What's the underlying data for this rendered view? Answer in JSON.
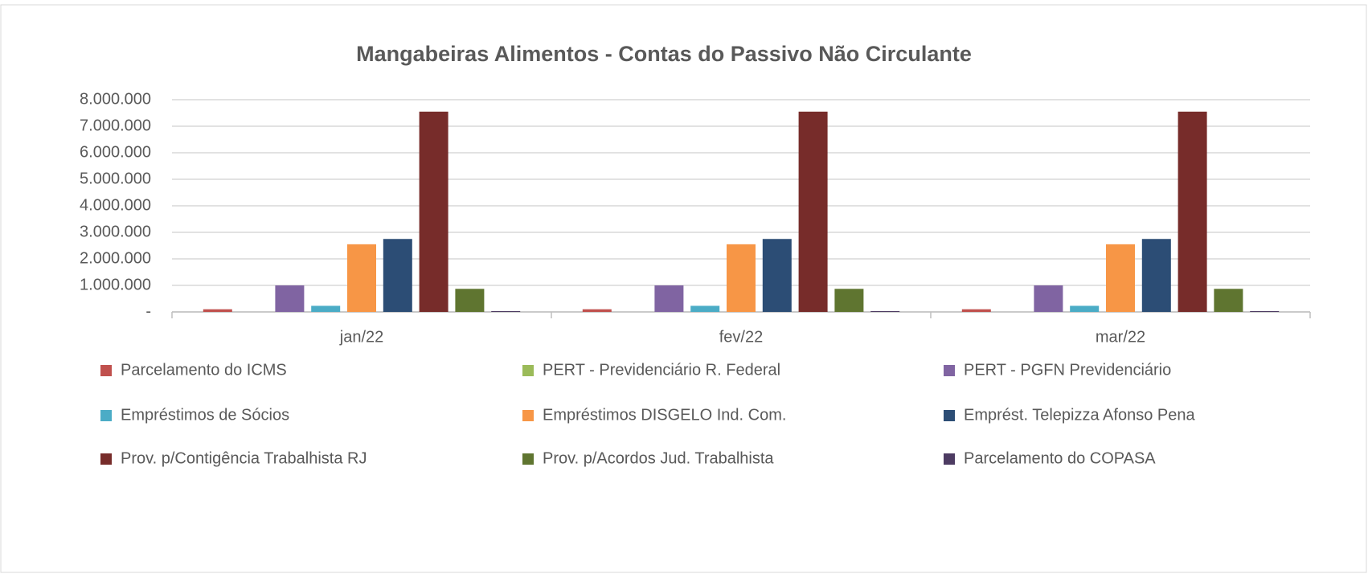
{
  "chart_data": {
    "type": "bar",
    "title": "Mangabeiras Alimentos - Contas do Passivo  Não Circulante",
    "categories": [
      "jan/22",
      "fev/22",
      "mar/22"
    ],
    "series": [
      {
        "name": "Parcelamento do ICMS",
        "color": "#c0504d",
        "values": [
          100000,
          100000,
          100000
        ]
      },
      {
        "name": "PERT - Previdenciário R. Federal",
        "color": "#9bbb59",
        "values": [
          0,
          0,
          0
        ]
      },
      {
        "name": "PERT - PGFN Previdenciário",
        "color": "#8064a2",
        "values": [
          1000000,
          1000000,
          1000000
        ]
      },
      {
        "name": "Empréstimos de Sócios",
        "color": "#4bacc6",
        "values": [
          230000,
          230000,
          230000
        ]
      },
      {
        "name": "Empréstimos DISGELO Ind. Com.",
        "color": "#f79646",
        "values": [
          2550000,
          2550000,
          2550000
        ]
      },
      {
        "name": "Emprést. Telepizza Afonso Pena",
        "color": "#2c4d75",
        "values": [
          2750000,
          2750000,
          2750000
        ]
      },
      {
        "name": "Prov. p/Contigência Trabalhista RJ",
        "color": "#772c2a",
        "values": [
          7550000,
          7550000,
          7550000
        ]
      },
      {
        "name": "Prov. p/Acordos Jud. Trabalhista",
        "color": "#5f7530",
        "values": [
          870000,
          870000,
          870000
        ]
      },
      {
        "name": "Parcelamento do COPASA",
        "color": "#4d3b62",
        "values": [
          30000,
          30000,
          30000
        ]
      }
    ],
    "ylim": [
      0,
      8000000
    ],
    "yticks": [
      {
        "value": 0,
        "label": "-"
      },
      {
        "value": 1000000,
        "label": "1.000.000"
      },
      {
        "value": 2000000,
        "label": "2.000.000"
      },
      {
        "value": 3000000,
        "label": "3.000.000"
      },
      {
        "value": 4000000,
        "label": "4.000.000"
      },
      {
        "value": 5000000,
        "label": "5.000.000"
      },
      {
        "value": 6000000,
        "label": "6.000.000"
      },
      {
        "value": 7000000,
        "label": "7.000.000"
      },
      {
        "value": 8000000,
        "label": "8.000.000"
      }
    ],
    "grid": true,
    "legend": "bottom"
  }
}
